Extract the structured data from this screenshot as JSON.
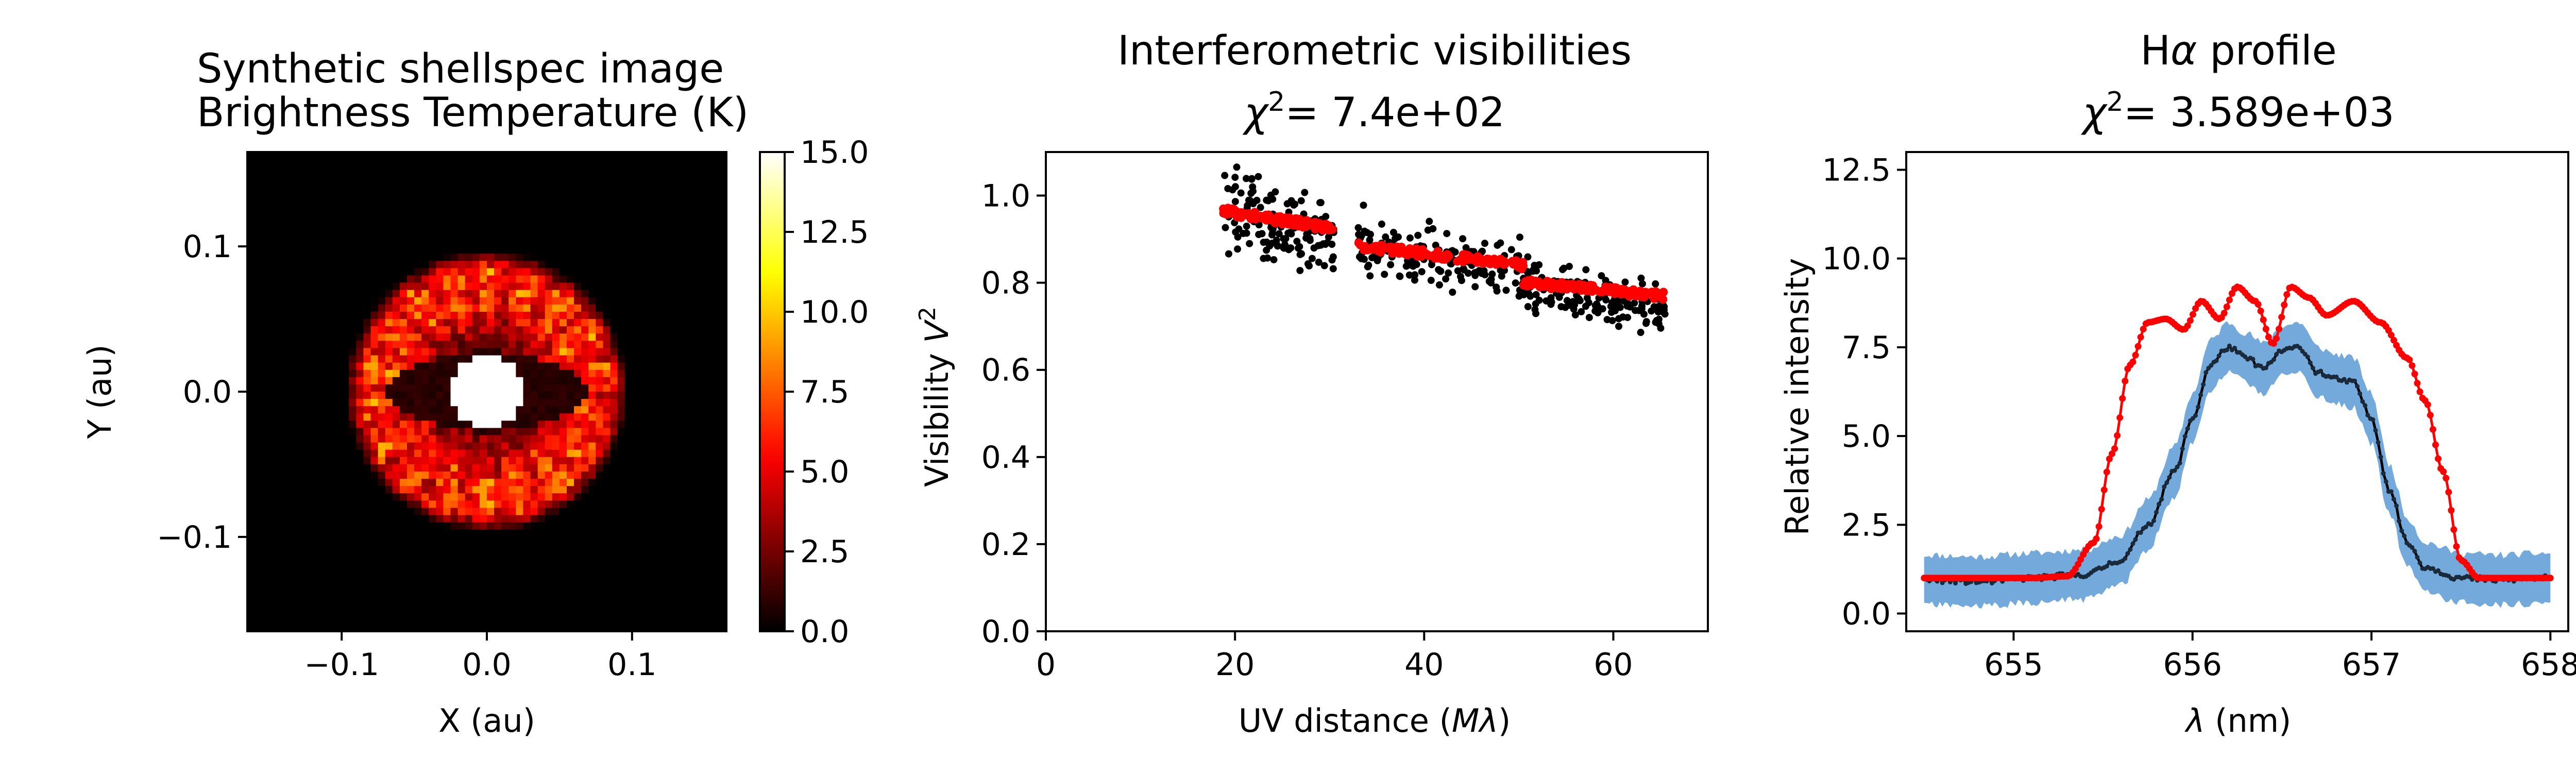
{
  "chart_data": [
    {
      "type": "heatmap",
      "title_lines": [
        "Synthetic shellspec image",
        "Brightness Temperature (K)"
      ],
      "xlabel": "X (au)",
      "ylabel": "Y (au)",
      "xlim": [
        -0.165,
        0.165
      ],
      "ylim": [
        -0.165,
        0.165
      ],
      "xticks": [
        {
          "value": -0.1,
          "label": "−0.1"
        },
        {
          "value": 0.0,
          "label": "0.0"
        },
        {
          "value": 0.1,
          "label": "0.1"
        }
      ],
      "yticks": [
        {
          "value": -0.1,
          "label": "−0.1"
        },
        {
          "value": 0.0,
          "label": "0.0"
        },
        {
          "value": 0.1,
          "label": "0.1"
        }
      ],
      "colormap": "hot",
      "colorbar": {
        "range": [
          0.0,
          15.0
        ],
        "ticks": [
          {
            "value": 0.0,
            "label": "0.0"
          },
          {
            "value": 2.5,
            "label": "2.5"
          },
          {
            "value": 5.0,
            "label": "5.0"
          },
          {
            "value": 7.5,
            "label": "7.5"
          },
          {
            "value": 10.0,
            "label": "10.0"
          },
          {
            "value": 12.5,
            "label": "12.5"
          },
          {
            "value": 15.0,
            "label": "15.0"
          }
        ]
      },
      "features": {
        "central_disk": {
          "radius_au": 0.025,
          "value_K": 15.0
        },
        "ring": {
          "inner_radius_au": 0.06,
          "outer_radius_au": 0.085,
          "value_range_K": [
            4.0,
            10.0
          ]
        },
        "dark_lens": {
          "half_width_au": 0.072,
          "half_height_au": 0.028,
          "value_K": 0.5
        }
      }
    },
    {
      "type": "scatter",
      "title_lines": [
        "Interferometric visibilities"
      ],
      "chi2_label": "χ² = 7.4e+02",
      "chi2_prefix": "χ",
      "chi2_value": "=  7.4e+02",
      "xlabel": "UV distance (Mλ)",
      "ylabel": "Visibility V²",
      "xlim": [
        0,
        70
      ],
      "ylim": [
        0.0,
        1.1
      ],
      "xticks": [
        {
          "value": 0,
          "label": "0"
        },
        {
          "value": 20,
          "label": "20"
        },
        {
          "value": 40,
          "label": "40"
        },
        {
          "value": 60,
          "label": "60"
        }
      ],
      "yticks": [
        {
          "value": 0.0,
          "label": "0.0"
        },
        {
          "value": 0.2,
          "label": "0.2"
        },
        {
          "value": 0.4,
          "label": "0.4"
        },
        {
          "value": 0.6,
          "label": "0.6"
        },
        {
          "value": 0.8,
          "label": "0.8"
        },
        {
          "value": 1.0,
          "label": "1.0"
        }
      ],
      "series": [
        {
          "color": "#000000",
          "clusters": [
            {
              "x_range": [
                18.5,
                30.5
              ],
              "y_start": 0.96,
              "y_end": 0.9,
              "spread": 0.09
            },
            {
              "x_range": [
                33.0,
                50.5
              ],
              "y_start": 0.88,
              "y_end": 0.82,
              "spread": 0.07
            },
            {
              "x_range": [
                50.5,
                65.5
              ],
              "y_start": 0.8,
              "y_end": 0.73,
              "spread": 0.06
            }
          ]
        },
        {
          "color": "#ff0000",
          "clusters": [
            {
              "x_range": [
                18.5,
                30.5
              ],
              "y_start": 0.965,
              "y_end": 0.925
            },
            {
              "x_range": [
                33.0,
                50.5
              ],
              "y_start": 0.885,
              "y_end": 0.84
            },
            {
              "x_range": [
                50.5,
                65.5
              ],
              "y_start": 0.8,
              "y_end": 0.77
            }
          ]
        }
      ]
    },
    {
      "type": "line",
      "title_lines": [
        "Hα profile"
      ],
      "chi2_label": "χ² = 3.589e+03",
      "chi2_prefix": "χ",
      "chi2_value": "=  3.589e+03",
      "title_prefix": "H",
      "title_alpha": "α",
      "title_suffix": " profile",
      "xlabel": "λ (nm)",
      "ylabel": "Relative intensity",
      "xlim": [
        654.4,
        658.1
      ],
      "ylim": [
        -0.5,
        13.0
      ],
      "xticks": [
        {
          "value": 655,
          "label": "655"
        },
        {
          "value": 656,
          "label": "656"
        },
        {
          "value": 657,
          "label": "657"
        },
        {
          "value": 658,
          "label": "658"
        }
      ],
      "yticks": [
        {
          "value": 0.0,
          "label": "0.0"
        },
        {
          "value": 2.5,
          "label": "2.5"
        },
        {
          "value": 5.0,
          "label": "5.0"
        },
        {
          "value": 7.5,
          "label": "7.5"
        },
        {
          "value": 10.0,
          "label": "10.0"
        },
        {
          "value": 12.5,
          "label": "12.5"
        }
      ],
      "series": [
        {
          "color": "#ff0000",
          "x": [
            654.5,
            654.8,
            655.1,
            655.3,
            655.45,
            655.55,
            655.65,
            655.75,
            655.85,
            655.95,
            656.05,
            656.15,
            656.25,
            656.35,
            656.45,
            656.55,
            656.65,
            656.75,
            656.9,
            657.05,
            657.2,
            657.3,
            657.4,
            657.5,
            657.6,
            657.8,
            658.0
          ],
          "y": [
            1.0,
            1.0,
            1.0,
            1.05,
            2.0,
            4.5,
            7.0,
            8.2,
            8.3,
            8.0,
            8.8,
            8.3,
            9.2,
            8.8,
            7.6,
            9.2,
            8.9,
            8.4,
            8.8,
            8.2,
            7.2,
            6.0,
            4.0,
            1.5,
            1.0,
            1.0,
            1.0
          ]
        },
        {
          "color": "#000000",
          "x": [
            654.5,
            654.8,
            655.1,
            655.4,
            655.6,
            655.75,
            655.9,
            656.0,
            656.1,
            656.2,
            656.3,
            656.4,
            656.5,
            656.6,
            656.7,
            656.8,
            656.9,
            657.0,
            657.1,
            657.2,
            657.3,
            657.5,
            657.7,
            658.0
          ],
          "y": [
            0.95,
            0.9,
            1.0,
            1.1,
            1.5,
            2.5,
            4.0,
            5.5,
            7.0,
            7.5,
            7.2,
            6.9,
            7.4,
            7.5,
            6.8,
            6.6,
            6.5,
            5.5,
            3.5,
            2.0,
            1.3,
            1.0,
            0.95,
            1.0
          ]
        }
      ],
      "band": {
        "color": "#5b9bd5",
        "half_width": 0.7
      }
    }
  ]
}
